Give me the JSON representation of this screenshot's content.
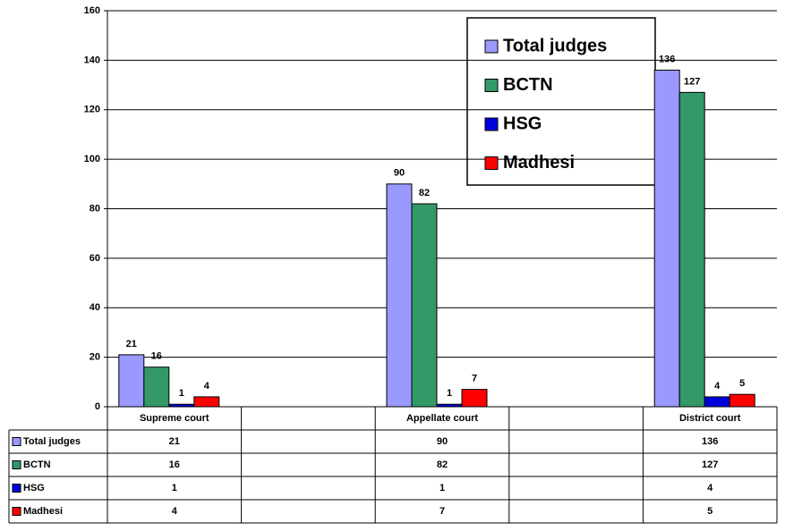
{
  "chart_data": {
    "type": "bar",
    "categories": [
      "Supreme court",
      null,
      "Appellate court",
      null,
      "District court"
    ],
    "series": [
      {
        "name": "Total judges",
        "color": "#9999ff",
        "values": [
          21,
          null,
          90,
          null,
          136
        ]
      },
      {
        "name": "BCTN",
        "color": "#339966",
        "values": [
          16,
          null,
          82,
          null,
          127
        ]
      },
      {
        "name": "HSG",
        "color": "#0000dd",
        "values": [
          1,
          null,
          1,
          null,
          4
        ]
      },
      {
        "name": "Madhesi",
        "color": "#ff0000",
        "values": [
          4,
          null,
          7,
          null,
          5
        ]
      }
    ],
    "ylim": [
      0,
      160
    ],
    "yticks": [
      0,
      20,
      40,
      60,
      80,
      100,
      120,
      140,
      160
    ],
    "grid": true
  }
}
